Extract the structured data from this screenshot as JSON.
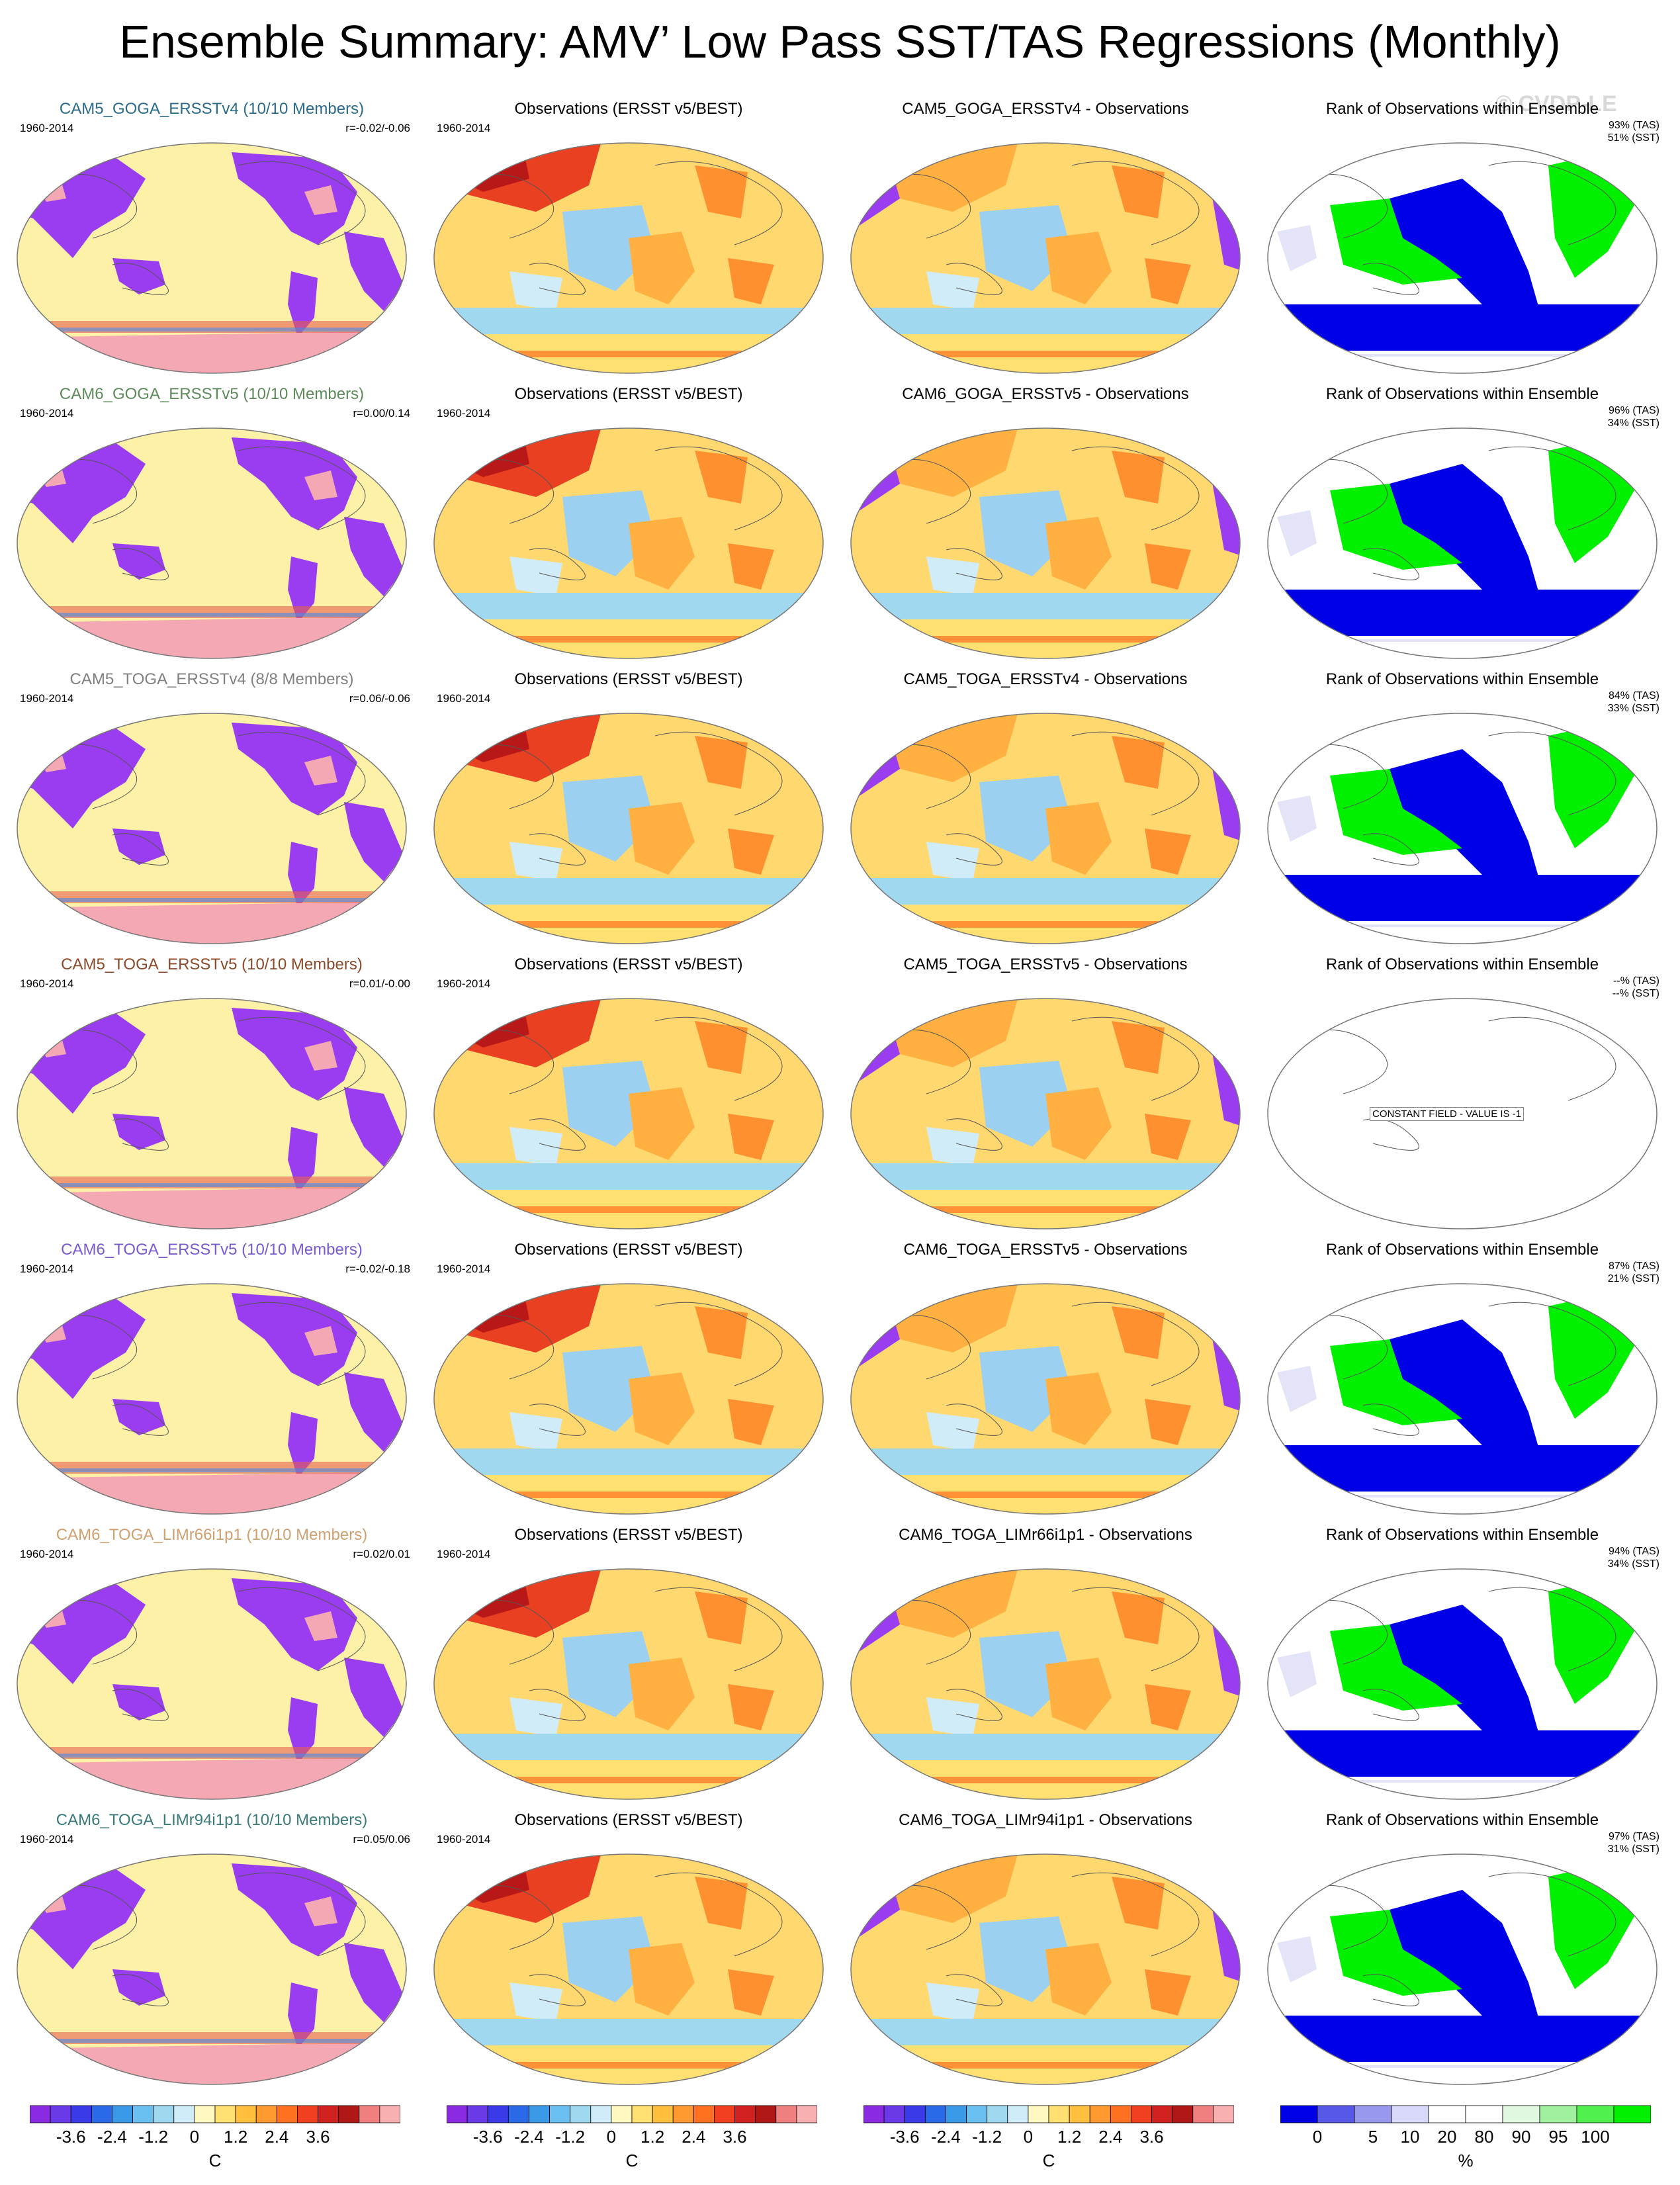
{
  "title": "Ensemble Summary: AMV’ Low Pass SST/TAS Regressions (Monthly)",
  "watermark": "© CVDP-LE",
  "colors": {
    "purple": "#9a3cf0",
    "yellow": "#fdf1a8",
    "pink": "#f3a8b4",
    "rank_blue": "#0000e6",
    "rank_green": "#00f000",
    "rank_lavender": "#e4e4f8"
  },
  "rows": [
    {
      "model_title": "CAM5_GOGA_ERSSTv4 (10/10 Members)",
      "model_title_color": "#2a6a8a",
      "years": "1960-2014",
      "corr": "r=-0.02/-0.06",
      "obs_title": "Observations (ERSST v5/BEST)",
      "obs_years": "1960-2014",
      "diff_title": "CAM5_GOGA_ERSSTv4 - Observations",
      "rank_title": "Rank of Observations within Ensemble",
      "rank_tas": "93% (TAS)",
      "rank_sst": "51% (SST)",
      "constant_field": ""
    },
    {
      "model_title": "CAM6_GOGA_ERSSTv5 (10/10 Members)",
      "model_title_color": "#5d8a5a",
      "years": "1960-2014",
      "corr": "r=0.00/0.14",
      "obs_title": "Observations (ERSST v5/BEST)",
      "obs_years": "1960-2014",
      "diff_title": "CAM6_GOGA_ERSSTv5 - Observations",
      "rank_title": "Rank of Observations within Ensemble",
      "rank_tas": "96% (TAS)",
      "rank_sst": "34% (SST)",
      "constant_field": ""
    },
    {
      "model_title": "CAM5_TOGA_ERSSTv4 (8/8 Members)",
      "model_title_color": "#808080",
      "years": "1960-2014",
      "corr": "r=0.06/-0.06",
      "obs_title": "Observations (ERSST v5/BEST)",
      "obs_years": "1960-2014",
      "diff_title": "CAM5_TOGA_ERSSTv4 - Observations",
      "rank_title": "Rank of Observations within Ensemble",
      "rank_tas": "84% (TAS)",
      "rank_sst": "33% (SST)",
      "constant_field": ""
    },
    {
      "model_title": "CAM5_TOGA_ERSSTv5 (10/10 Members)",
      "model_title_color": "#8a4a2a",
      "years": "1960-2014",
      "corr": "r=0.01/-0.00",
      "obs_title": "Observations (ERSST v5/BEST)",
      "obs_years": "1960-2014",
      "diff_title": "CAM5_TOGA_ERSSTv5 - Observations",
      "rank_title": "Rank of Observations within Ensemble",
      "rank_tas": "--% (TAS)",
      "rank_sst": "--% (SST)",
      "constant_field": "CONSTANT FIELD - VALUE IS -1"
    },
    {
      "model_title": "CAM6_TOGA_ERSSTv5 (10/10 Members)",
      "model_title_color": "#7a5ad0",
      "years": "1960-2014",
      "corr": "r=-0.02/-0.18",
      "obs_title": "Observations (ERSST v5/BEST)",
      "obs_years": "1960-2014",
      "diff_title": "CAM6_TOGA_ERSSTv5 - Observations",
      "rank_title": "Rank of Observations within Ensemble",
      "rank_tas": "87% (TAS)",
      "rank_sst": "21% (SST)",
      "constant_field": ""
    },
    {
      "model_title": "CAM6_TOGA_LIMr66i1p1 (10/10 Members)",
      "model_title_color": "#d0a070",
      "years": "1960-2014",
      "corr": "r=0.02/0.01",
      "obs_title": "Observations (ERSST v5/BEST)",
      "obs_years": "1960-2014",
      "diff_title": "CAM6_TOGA_LIMr66i1p1 - Observations",
      "rank_title": "Rank of Observations within Ensemble",
      "rank_tas": "94% (TAS)",
      "rank_sst": "34% (SST)",
      "constant_field": ""
    },
    {
      "model_title": "CAM6_TOGA_LIMr94i1p1 (10/10 Members)",
      "model_title_color": "#3a7a7a",
      "years": "1960-2014",
      "corr": "r=0.05/0.06",
      "obs_title": "Observations (ERSST v5/BEST)",
      "obs_years": "1960-2014",
      "diff_title": "CAM6_TOGA_LIMr94i1p1 - Observations",
      "rank_title": "Rank of Observations within Ensemble",
      "rank_tas": "97% (TAS)",
      "rank_sst": "31% (SST)",
      "constant_field": ""
    }
  ],
  "colorbars": [
    {
      "ticks": [
        "-3.6",
        "-2.4",
        "-1.2",
        "0",
        "1.2",
        "2.4",
        "3.6"
      ],
      "unit": "C",
      "colors": [
        "#8a2be2",
        "#6a3ae8",
        "#3a3ae8",
        "#2a6ae8",
        "#3a9ae8",
        "#6ac0f0",
        "#a0d8f0",
        "#d0ecf8",
        "#fff8c0",
        "#ffe070",
        "#ffc040",
        "#ff9a30",
        "#ff7020",
        "#f04020",
        "#d02020",
        "#b01818",
        "#f08080",
        "#f8b0b0"
      ]
    },
    {
      "ticks": [
        "-3.6",
        "-2.4",
        "-1.2",
        "0",
        "1.2",
        "2.4",
        "3.6"
      ],
      "unit": "C",
      "colors": [
        "#8a2be2",
        "#6a3ae8",
        "#3a3ae8",
        "#2a6ae8",
        "#3a9ae8",
        "#6ac0f0",
        "#a0d8f0",
        "#d0ecf8",
        "#fff8c0",
        "#ffe070",
        "#ffc040",
        "#ff9a30",
        "#ff7020",
        "#f04020",
        "#d02020",
        "#b01818",
        "#f08080",
        "#f8b0b0"
      ]
    },
    {
      "ticks": [
        "-3.6",
        "-2.4",
        "-1.2",
        "0",
        "1.2",
        "2.4",
        "3.6"
      ],
      "unit": "C",
      "colors": [
        "#8a2be2",
        "#6a3ae8",
        "#3a3ae8",
        "#2a6ae8",
        "#3a9ae8",
        "#6ac0f0",
        "#a0d8f0",
        "#d0ecf8",
        "#fff8c0",
        "#ffe070",
        "#ffc040",
        "#ff9a30",
        "#ff7020",
        "#f04020",
        "#d02020",
        "#b01818",
        "#f08080",
        "#f8b0b0"
      ]
    },
    {
      "ticks": [
        "0",
        "5",
        "10",
        "20",
        "80",
        "90",
        "95",
        "100"
      ],
      "unit": "%",
      "colors": [
        "#0000e6",
        "#5858e8",
        "#9898ec",
        "#d8d8f8",
        "#ffffff",
        "#ffffff",
        "#e0f8e0",
        "#a0f0a0",
        "#50f050",
        "#00f000"
      ]
    }
  ],
  "chart_data": {
    "type": "heatmap",
    "title": "Ensemble Summary: AMV’ Low Pass SST/TAS Regressions (Monthly)",
    "period": "1960-2014",
    "columns": [
      "ensemble",
      "Observations (ERSST v5/BEST)",
      "ensemble - Observations",
      "Rank of Observations within Ensemble"
    ],
    "regression_colorbar": {
      "unit": "C",
      "ticks": [
        -3.6,
        -2.4,
        -1.2,
        0,
        1.2,
        2.4,
        3.6
      ]
    },
    "rank_colorbar": {
      "unit": "%",
      "ticks": [
        0,
        5,
        10,
        20,
        80,
        90,
        95,
        100
      ]
    },
    "pattern_correlations": [
      {
        "ensemble": "CAM5_GOGA_ERSSTv4",
        "members": "10/10",
        "r_tas": -0.02,
        "r_sst": -0.06,
        "rank_tas_pct": 93,
        "rank_sst_pct": 51
      },
      {
        "ensemble": "CAM6_GOGA_ERSSTv5",
        "members": "10/10",
        "r_tas": 0.0,
        "r_sst": 0.14,
        "rank_tas_pct": 96,
        "rank_sst_pct": 34
      },
      {
        "ensemble": "CAM5_TOGA_ERSSTv4",
        "members": "8/8",
        "r_tas": 0.06,
        "r_sst": -0.06,
        "rank_tas_pct": 84,
        "rank_sst_pct": 33
      },
      {
        "ensemble": "CAM5_TOGA_ERSSTv5",
        "members": "10/10",
        "r_tas": 0.01,
        "r_sst": -0.0,
        "rank_tas_pct": null,
        "rank_sst_pct": null
      },
      {
        "ensemble": "CAM6_TOGA_ERSSTv5",
        "members": "10/10",
        "r_tas": -0.02,
        "r_sst": -0.18,
        "rank_tas_pct": 87,
        "rank_sst_pct": 21
      },
      {
        "ensemble": "CAM6_TOGA_LIMr66i1p1",
        "members": "10/10",
        "r_tas": 0.02,
        "r_sst": 0.01,
        "rank_tas_pct": 94,
        "rank_sst_pct": 34
      },
      {
        "ensemble": "CAM6_TOGA_LIMr94i1p1",
        "members": "10/10",
        "r_tas": 0.05,
        "r_sst": 0.06,
        "rank_tas_pct": 97,
        "rank_sst_pct": 31
      }
    ]
  }
}
